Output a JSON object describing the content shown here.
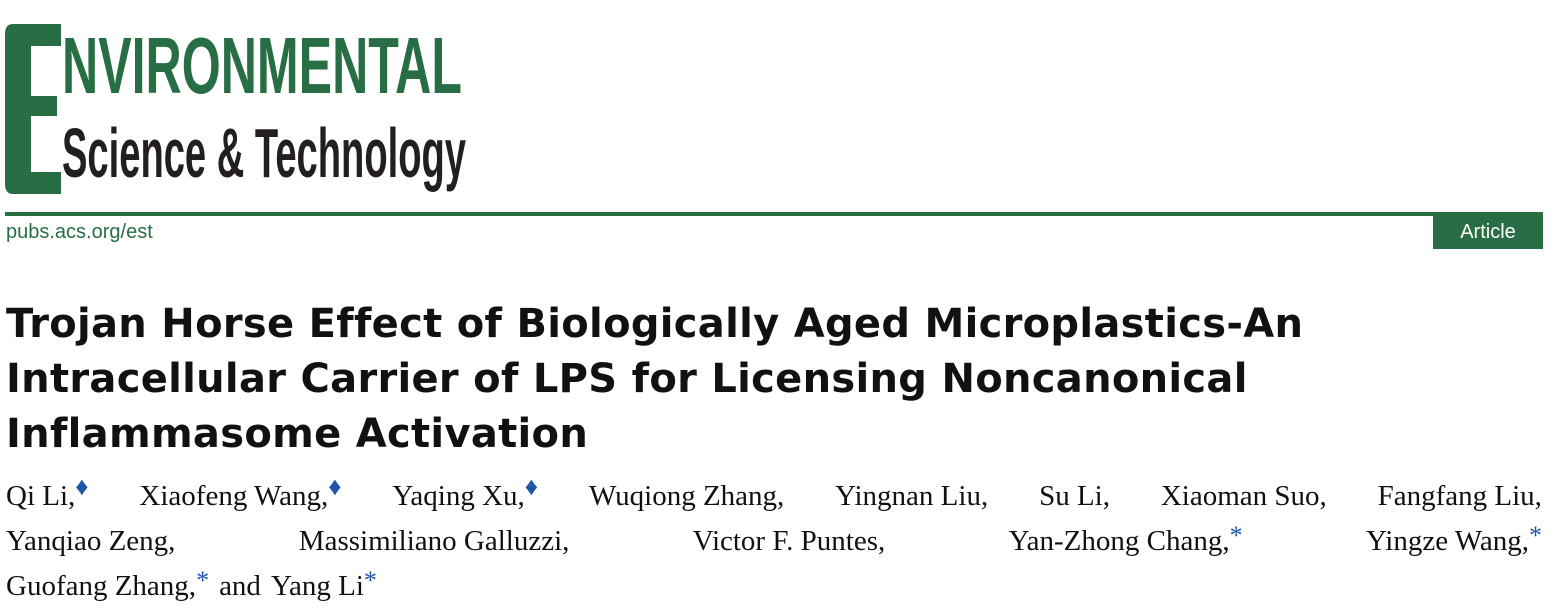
{
  "journal": {
    "logo_text_top": "ENVIRONMENTAL",
    "logo_text_bottom": "Science & Technology",
    "url": "pubs.acs.org/est",
    "article_type": "Article",
    "brand_color": "#286e44",
    "marker_color": "#1f57a8"
  },
  "title_lines": [
    "Trojan Horse Effect of Biologically Aged Microplastics-An",
    "Intracellular Carrier of LPS for Licensing Noncanonical",
    "Inflammasome Activation"
  ],
  "author_lines": [
    [
      {
        "name": "Qi Li,",
        "mark": "♦"
      },
      {
        "name": "Xiaofeng Wang,",
        "mark": "♦"
      },
      {
        "name": "Yaqing Xu,",
        "mark": "♦"
      },
      {
        "name": "Wuqiong Zhang,",
        "mark": ""
      },
      {
        "name": "Yingnan Liu,",
        "mark": ""
      },
      {
        "name": "Su Li,",
        "mark": ""
      },
      {
        "name": "Xiaoman Suo,",
        "mark": ""
      },
      {
        "name": "Fangfang Liu,",
        "mark": ""
      }
    ],
    [
      {
        "name": "Yanqiao Zeng,",
        "mark": ""
      },
      {
        "name": "Massimiliano Galluzzi,",
        "mark": ""
      },
      {
        "name": "Victor F. Puntes,",
        "mark": ""
      },
      {
        "name": "Yan-Zhong Chang,",
        "mark": "*"
      },
      {
        "name": "Yingze Wang,",
        "mark": "*"
      }
    ],
    [
      {
        "name": "Guofang Zhang,",
        "mark": "*"
      },
      {
        "name": "and",
        "mark": ""
      },
      {
        "name": "Yang Li",
        "mark": "*"
      }
    ]
  ]
}
